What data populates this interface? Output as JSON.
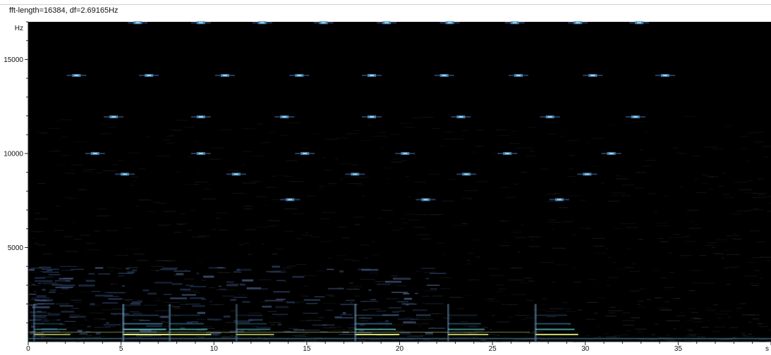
{
  "header": {
    "fft_info": "fft-length=16384, df=2.69165Hz"
  },
  "chart_data": {
    "type": "heatmap",
    "title": "",
    "xlabel": "s",
    "ylabel": "Hz",
    "xlim": [
      0,
      40
    ],
    "ylim": [
      0,
      17000
    ],
    "x_ticks": [
      0,
      5,
      10,
      15,
      20,
      25,
      30,
      35
    ],
    "y_ticks": [
      5000,
      10000,
      15000
    ],
    "grid": false,
    "colormap": [
      "#000000",
      "#1a2a4a",
      "#3f6f9f",
      "#6fb4d8",
      "#dcf06a",
      "#ffffff"
    ],
    "fundamental_bursts": [
      {
        "t": 0.3,
        "energy": 0.55
      },
      {
        "t": 5.1,
        "energy": 0.95
      },
      {
        "t": 7.6,
        "energy": 0.75
      },
      {
        "t": 11.2,
        "energy": 0.6
      },
      {
        "t": 17.6,
        "energy": 0.85
      },
      {
        "t": 22.6,
        "energy": 0.7
      },
      {
        "t": 27.3,
        "energy": 0.8
      }
    ],
    "tonal_components": [
      {
        "f": 16950,
        "t": [
          5.9,
          9.3,
          12.6,
          15.9,
          19.3,
          22.7,
          26.2,
          29.6,
          32.9
        ]
      },
      {
        "f": 14150,
        "t": [
          2.6,
          6.5,
          10.6,
          14.6,
          18.5,
          22.4,
          26.4,
          30.4,
          34.3
        ]
      },
      {
        "f": 11950,
        "t": [
          4.6,
          9.3,
          13.8,
          18.5,
          23.3,
          28.1,
          32.7
        ]
      },
      {
        "f": 10000,
        "t": [
          3.6,
          9.3,
          14.9,
          20.3,
          25.8,
          31.4
        ]
      },
      {
        "f": 8900,
        "t": [
          5.2,
          11.2,
          17.6,
          23.6,
          30.1
        ]
      },
      {
        "f": 7550,
        "t": [
          14.1,
          21.4,
          28.6
        ]
      }
    ]
  }
}
